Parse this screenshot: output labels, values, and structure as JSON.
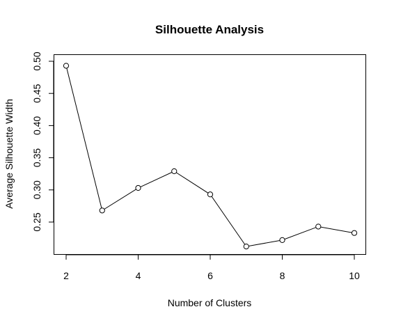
{
  "chart_data": {
    "type": "line",
    "title": "Silhouette Analysis",
    "xlabel": "Number of Clusters",
    "ylabel": "Average Silhouette Width",
    "x": [
      2,
      3,
      4,
      5,
      6,
      7,
      8,
      9,
      10
    ],
    "series": [
      {
        "values": [
          0.493,
          0.268,
          0.303,
          0.329,
          0.293,
          0.212,
          0.222,
          0.243,
          0.233
        ]
      }
    ],
    "xlim": [
      2,
      10
    ],
    "ylim": [
      0.25,
      0.5
    ],
    "xticks": [
      2,
      4,
      6,
      8,
      10
    ],
    "yticks": [
      0.25,
      0.3,
      0.35,
      0.4,
      0.45,
      0.5
    ],
    "ytick_labels": [
      "0.25",
      "0.30",
      "0.35",
      "0.40",
      "0.45",
      "0.50"
    ],
    "grid": false,
    "line_color": "#000000",
    "marker_fill": "#ffffff"
  }
}
